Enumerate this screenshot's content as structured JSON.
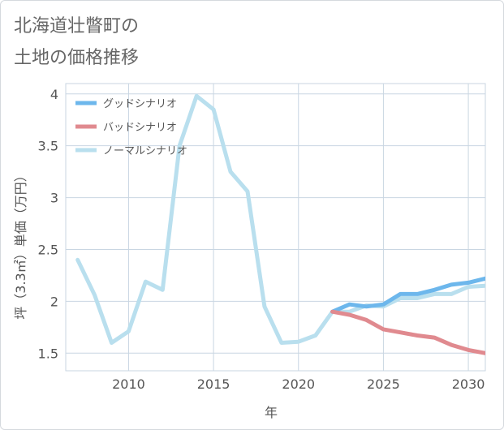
{
  "title": {
    "line1": "北海道壮瞥町の",
    "line2": "土地の価格推移"
  },
  "colors": {
    "good": "#6db7ec",
    "bad": "#e08a8f",
    "normal": "#b9dfee",
    "grid": "#c9d6e2",
    "axis_text": "#555555",
    "title": "#666666"
  },
  "chart_data": {
    "type": "line",
    "xlabel": "年",
    "ylabel": "坪（3.3㎡）単価（万円）",
    "xlim": [
      2006.3,
      2031
    ],
    "ylim": [
      1.33,
      4.1
    ],
    "xticks": [
      2010,
      2015,
      2020,
      2025,
      2030
    ],
    "yticks": [
      1.5,
      2,
      2.5,
      3,
      3.5,
      4
    ],
    "xtick_labels": [
      "2010",
      "2015",
      "2020",
      "2025",
      "2030"
    ],
    "ytick_labels": [
      "1.5",
      "2",
      "2.5",
      "3",
      "3.5",
      "4"
    ],
    "grid": true,
    "legend_position": "top-left",
    "series": [
      {
        "name": "グッドシナリオ",
        "color": "#6db7ec",
        "x": [
          2022,
          2023,
          2024,
          2025,
          2026,
          2027,
          2028,
          2029,
          2030,
          2031
        ],
        "y": [
          1.9,
          1.97,
          1.95,
          1.97,
          2.07,
          2.07,
          2.11,
          2.16,
          2.18,
          2.22
        ]
      },
      {
        "name": "バッドシナリオ",
        "color": "#e08a8f",
        "x": [
          2022,
          2023,
          2024,
          2025,
          2026,
          2027,
          2028,
          2029,
          2030,
          2031
        ],
        "y": [
          1.9,
          1.87,
          1.82,
          1.73,
          1.7,
          1.67,
          1.65,
          1.58,
          1.53,
          1.5
        ]
      },
      {
        "name": "ノーマルシナリオ",
        "color": "#b9dfee",
        "x": [
          2007,
          2008,
          2009,
          2010,
          2011,
          2012,
          2013,
          2014,
          2015,
          2016,
          2017,
          2018,
          2019,
          2020,
          2021,
          2022,
          2023,
          2024,
          2025,
          2026,
          2027,
          2028,
          2029,
          2030,
          2031
        ],
        "y": [
          2.4,
          2.06,
          1.6,
          1.71,
          2.19,
          2.11,
          3.5,
          3.98,
          3.85,
          3.25,
          3.06,
          1.95,
          1.6,
          1.61,
          1.67,
          1.9,
          1.9,
          1.96,
          1.95,
          2.03,
          2.03,
          2.07,
          2.07,
          2.14,
          2.15
        ]
      }
    ]
  }
}
